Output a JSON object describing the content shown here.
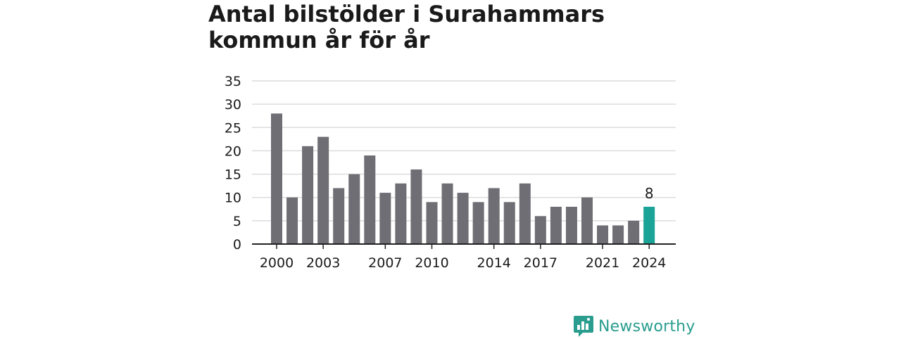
{
  "title": "Antal bilstölder i Surahammars kommun år för år",
  "brand": {
    "name": "Newsworthy",
    "icon": "newsworthy-logo-icon"
  },
  "colors": {
    "bar": "#6f6e74",
    "highlight": "#1aa396",
    "grid": "#dcdcdc",
    "axis": "#222222",
    "brand": "#2a9d8f"
  },
  "chart_data": {
    "type": "bar",
    "title": "Antal bilstölder i Surahammars kommun år för år",
    "xlabel": "",
    "ylabel": "",
    "categories": [
      "2000",
      "2001",
      "2002",
      "2003",
      "2004",
      "2005",
      "2006",
      "2007",
      "2008",
      "2009",
      "2010",
      "2011",
      "2012",
      "2013",
      "2014",
      "2015",
      "2016",
      "2017",
      "2018",
      "2019",
      "2020",
      "2021",
      "2022",
      "2023",
      "2024"
    ],
    "values": [
      28,
      10,
      21,
      23,
      12,
      15,
      19,
      11,
      13,
      16,
      9,
      13,
      11,
      9,
      12,
      9,
      13,
      6,
      8,
      8,
      10,
      4,
      4,
      5,
      8
    ],
    "x_tick_labels": [
      "2000",
      "2003",
      "2007",
      "2010",
      "2014",
      "2017",
      "2021",
      "2024"
    ],
    "y_ticks": [
      0,
      5,
      10,
      15,
      20,
      25,
      30,
      35
    ],
    "ylim": [
      0,
      35
    ],
    "highlight": {
      "category": "2024",
      "label": "8"
    },
    "grid": true,
    "legend": "none"
  }
}
